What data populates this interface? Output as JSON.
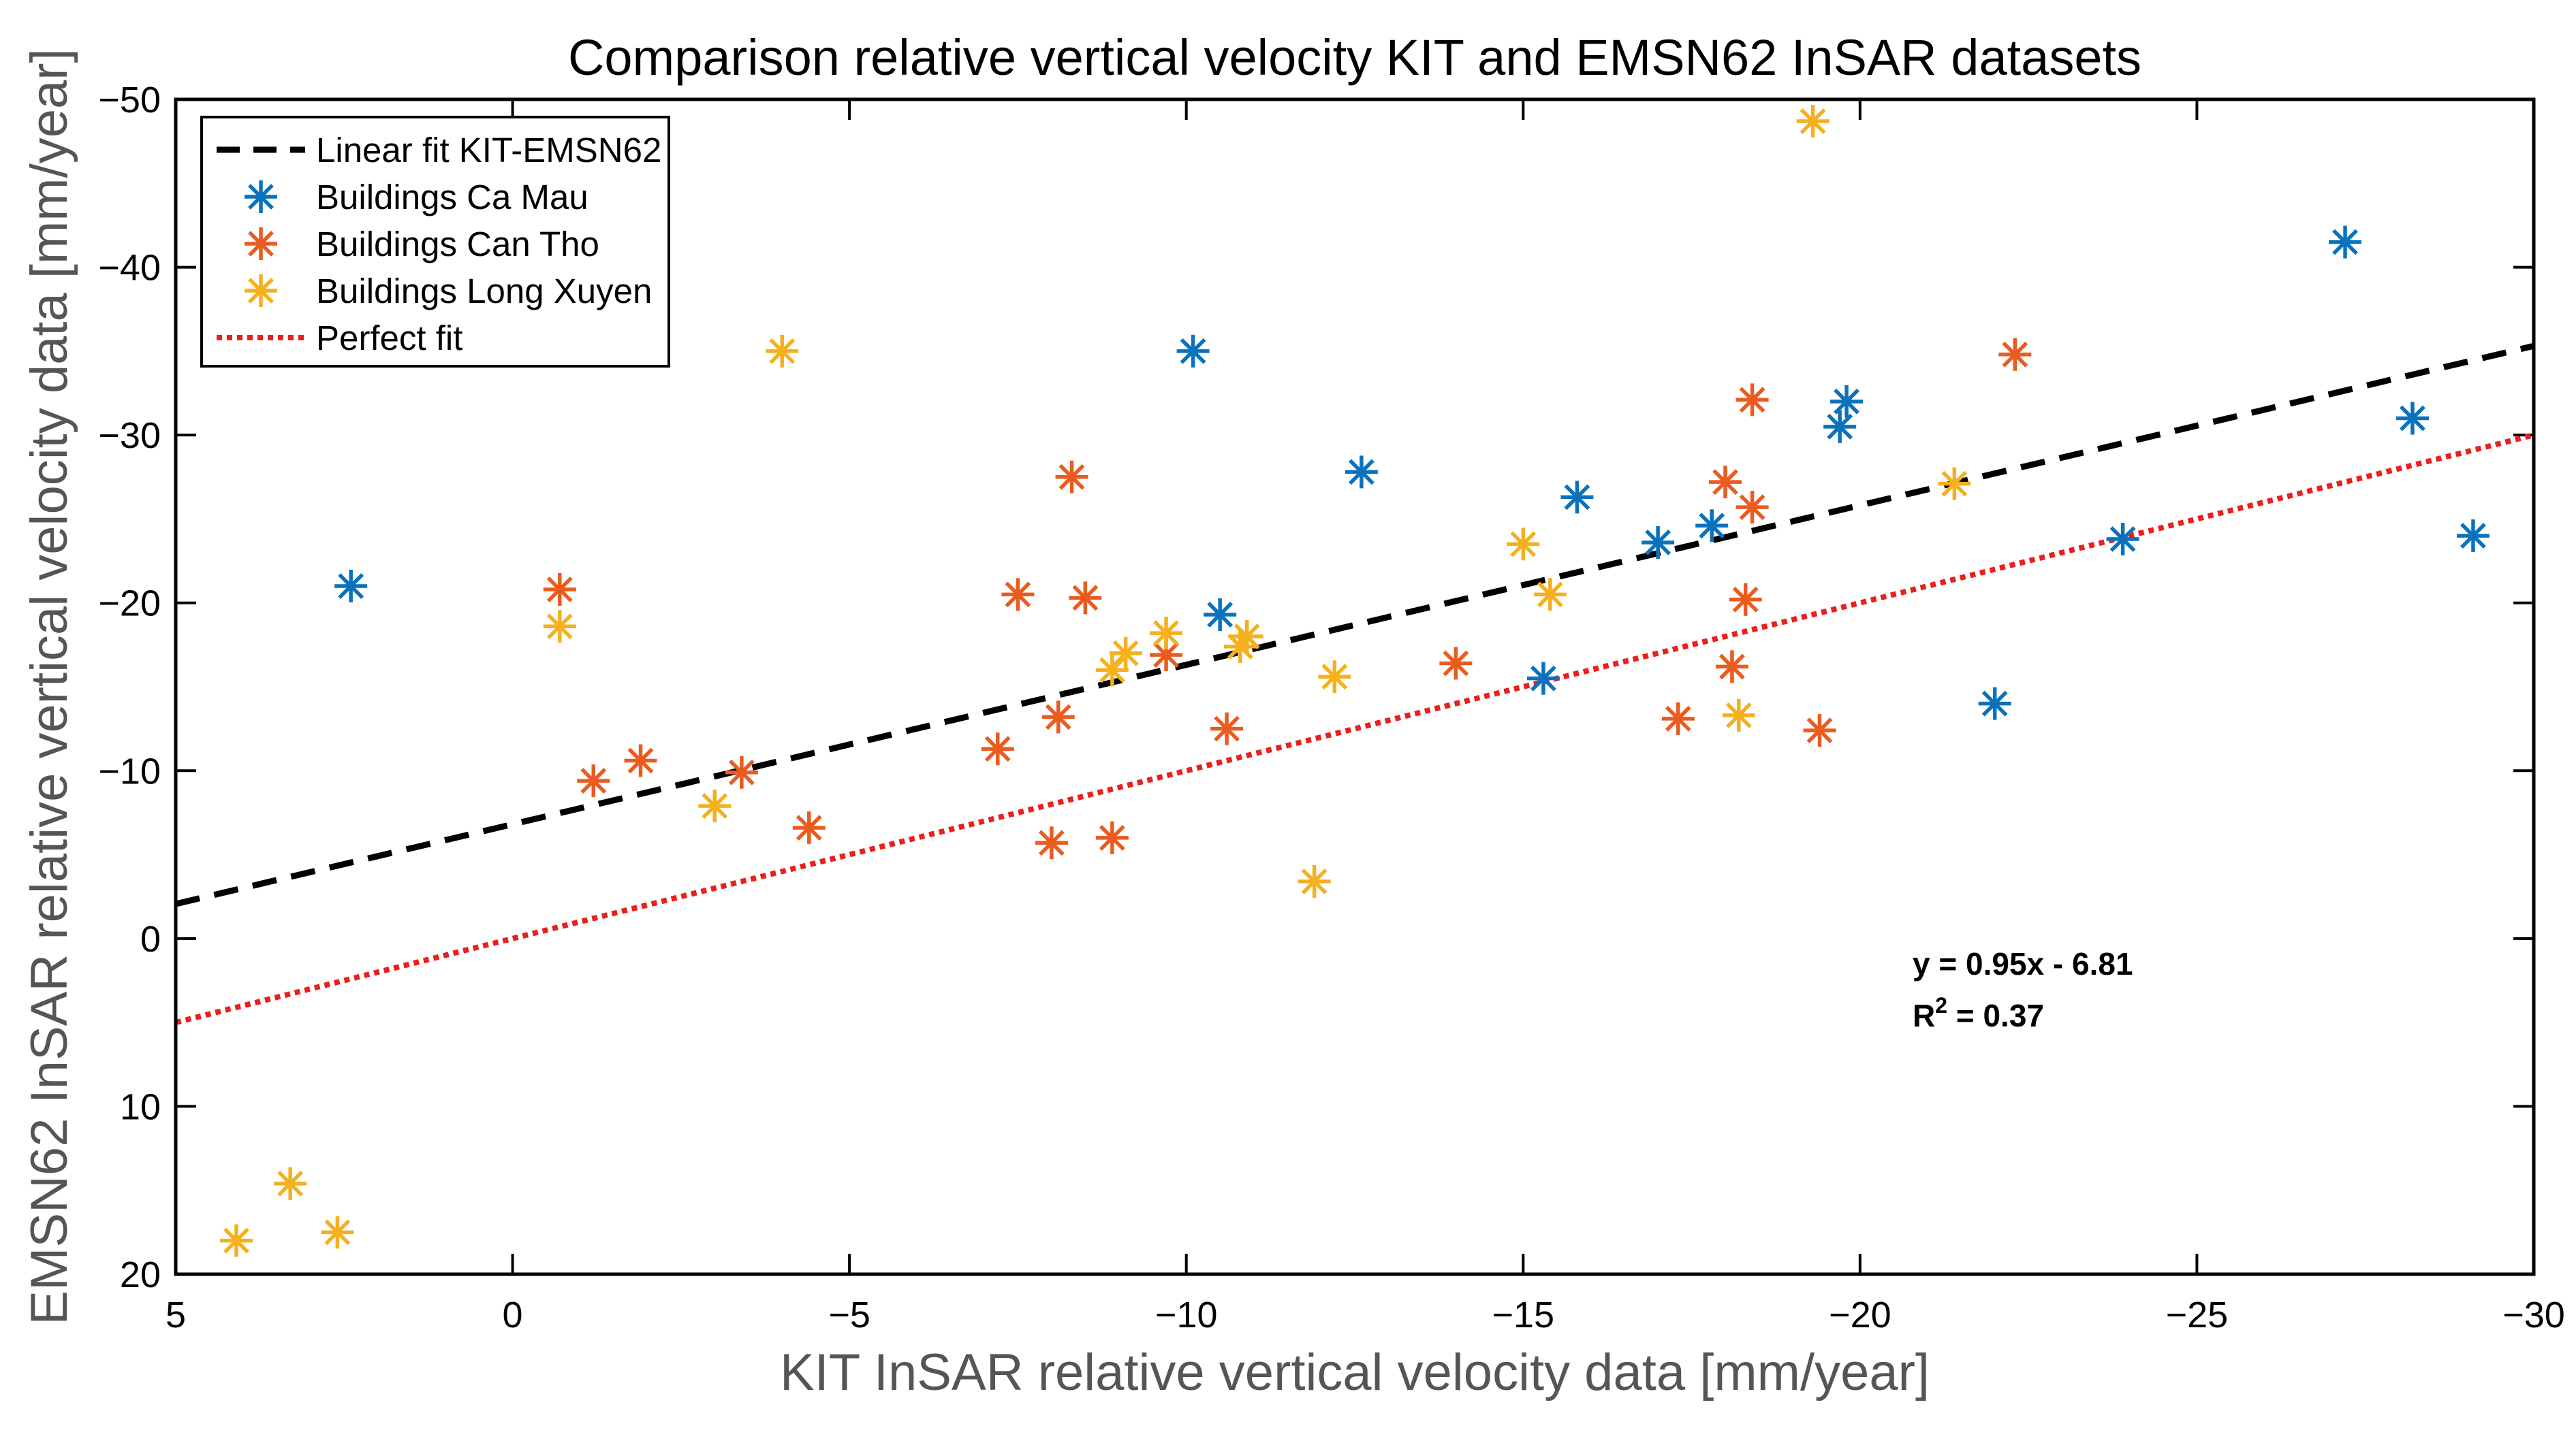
{
  "chart_data": {
    "type": "scatter",
    "title": "Comparison relative vertical velocity KIT and EMSN62 InSAR datasets",
    "xlabel": "KIT InSAR relative vertical velocity data [mm/year]",
    "ylabel": "EMSN62 InSAR relative vertical velocity data [mm/year]",
    "xlim": [
      5,
      -30
    ],
    "ylim": [
      20,
      -50
    ],
    "x_ticks": [
      5,
      0,
      -5,
      -10,
      -15,
      -20,
      -25,
      -30
    ],
    "x_tick_labels": [
      "5",
      "0",
      "−5",
      "−10",
      "−15",
      "−20",
      "−25",
      "−30"
    ],
    "y_ticks": [
      20,
      10,
      0,
      -10,
      -20,
      -30,
      -40,
      -50
    ],
    "y_tick_labels": [
      "20",
      "10",
      "0",
      "−10",
      "−20",
      "−30",
      "−40",
      "−50"
    ],
    "grid": false,
    "legend_position": "top-left",
    "lines": [
      {
        "name": "Linear fit KIT-EMSN62",
        "color": "#000000",
        "style": "dashed",
        "slope": 0.95,
        "intercept": -6.81
      },
      {
        "name": "Perfect fit",
        "color": "#e8201e",
        "style": "dotted",
        "slope": 1.0,
        "intercept": 0.0
      }
    ],
    "series": [
      {
        "name": "Buildings Ca Mau",
        "color": "#0a72bd",
        "x": [
          2.4,
          -10.1,
          -10.5,
          -12.6,
          -15.3,
          -15.8,
          -17.0,
          -17.8,
          -19.7,
          -19.8,
          -22.0,
          -23.9,
          -27.2,
          -28.2,
          -29.1
        ],
        "y": [
          -21.0,
          -35.0,
          -19.3,
          -27.8,
          -15.5,
          -26.3,
          -23.6,
          -24.6,
          -30.5,
          -32.0,
          -14.0,
          -23.8,
          -41.5,
          -31.0,
          -24.0
        ]
      },
      {
        "name": "Buildings Can Tho",
        "color": "#ea5b20",
        "x": [
          -0.7,
          -1.2,
          -1.9,
          -3.4,
          -4.4,
          -7.2,
          -7.5,
          -8.0,
          -8.1,
          -8.3,
          -8.5,
          -8.9,
          -9.7,
          -10.6,
          -14.0,
          -17.3,
          -18.0,
          -18.1,
          -18.3,
          -18.4,
          -18.4,
          -19.4,
          -22.3
        ],
        "y": [
          -20.8,
          -9.4,
          -10.6,
          -9.9,
          -6.6,
          -11.3,
          -20.5,
          -5.7,
          -13.2,
          -27.5,
          -20.3,
          -6.0,
          -16.9,
          -12.5,
          -16.4,
          -13.1,
          -27.2,
          -16.2,
          -20.2,
          -25.7,
          -32.1,
          -12.4,
          -34.8
        ]
      },
      {
        "name": "Buildings Long Xuyen",
        "color": "#f5b01e",
        "x": [
          4.1,
          3.3,
          2.6,
          -0.7,
          -3.0,
          -4.0,
          -8.9,
          -9.1,
          -9.7,
          -10.8,
          -10.9,
          -11.9,
          -12.2,
          -15.0,
          -15.4,
          -18.2,
          -19.3,
          -21.4
        ],
        "y": [
          18.0,
          14.6,
          17.5,
          -18.6,
          -7.9,
          -35.0,
          -16.0,
          -17.0,
          -18.2,
          -17.4,
          -18.0,
          -3.4,
          -15.6,
          -23.5,
          -20.5,
          -13.3,
          -48.7,
          -27.1
        ]
      }
    ],
    "legend": [
      "Linear fit KIT-EMSN62",
      "Buildings Ca Mau",
      "Buildings Can Tho",
      "Buildings Long Xuyen",
      "Perfect fit"
    ],
    "annotation": {
      "equation": "y = 0.95x - 6.81",
      "r2_prefix": "R",
      "r2_sup": "2",
      "r2_suffix": " = 0.37"
    }
  }
}
